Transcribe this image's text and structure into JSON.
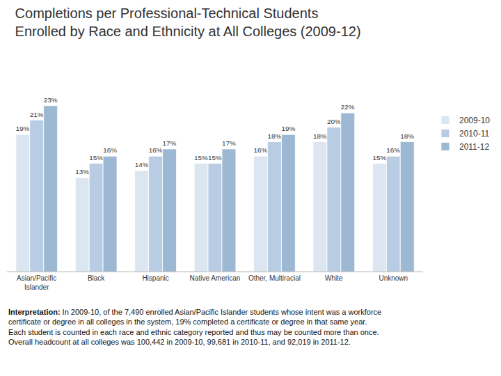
{
  "chart_data": {
    "type": "bar",
    "title": "Completions per Professional-Technical Students",
    "subtitle": "Enrolled by Race and Ethnicity at All Colleges (2009-12)",
    "categories": [
      "Asian/Pacific\nIslander",
      "Black",
      "Hispanic",
      "Native American",
      "Other, Multiracial",
      "White",
      "Unknown"
    ],
    "series": [
      {
        "name": "2009-10",
        "color": "#dce6f1",
        "values": [
          19,
          13,
          14,
          15,
          16,
          18,
          15
        ],
        "value_labels": [
          "19%",
          "13%",
          "14%",
          "15%",
          "16%",
          "18%",
          "15%"
        ]
      },
      {
        "name": "2010-11",
        "color": "#b8cce4",
        "values": [
          21,
          15,
          16,
          15,
          18,
          20,
          16
        ],
        "value_labels": [
          "21%",
          "15%",
          "16%",
          "15%",
          "18%",
          "20%",
          "16%"
        ]
      },
      {
        "name": "2011-12",
        "color": "#9db8d2",
        "values": [
          23,
          16,
          17,
          17,
          19,
          22,
          18
        ],
        "value_labels": [
          "23%",
          "16%",
          "17%",
          "17%",
          "19%",
          "22%",
          "18%"
        ]
      }
    ],
    "ylim": [
      0,
      28
    ],
    "tick_labels": "x",
    "grid": false,
    "data_labels": true,
    "legend": "right",
    "annotation": {
      "bold": "Interpretation:",
      "text": "In 2009-10, of the 7,490 enrolled Asian/Pacific Islander students whose intent was a workforce certificate or degree in all colleges in the system, 19% completed a certificate or degree in that same year. Each student is counted in each race and ethnic category reported and thus may be counted more than once. Overall headcount at all colleges was 100,442 in 2009-10, 99,681 in 2010-11, and 92,019 in 2011-12."
    }
  }
}
